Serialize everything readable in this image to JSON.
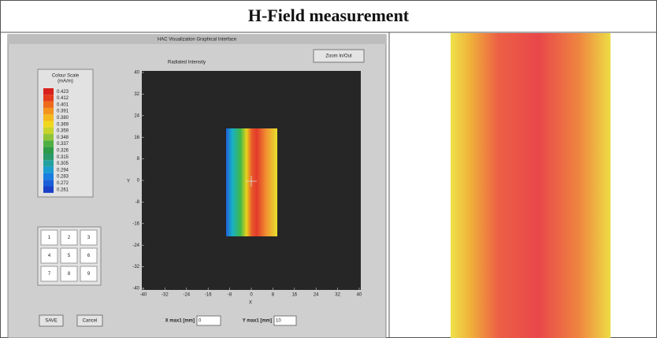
{
  "header": {
    "title": "H-Field measurement"
  },
  "window": {
    "title": "HAC Visualization Graphical Interface",
    "zoom_button": "Zoom In/Out",
    "plot": {
      "title": "Radiated Intensity",
      "x_label": "X",
      "y_label": "Y",
      "yticks": [
        "40",
        "32",
        "24",
        "16",
        "8",
        "0",
        "-8",
        "-16",
        "-24",
        "-32",
        "-40"
      ],
      "xticks": [
        "-40",
        "-32",
        "-24",
        "-16",
        "-8",
        "0",
        "8",
        "16",
        "24",
        "32",
        "40"
      ]
    },
    "color_scale": {
      "title": "Colour Scale",
      "unit": "(mA/m)",
      "labels": [
        "0.423",
        "0.412",
        "0.401",
        "0.391",
        "0.380",
        "0.369",
        "0.359",
        "0.348",
        "0.337",
        "0.326",
        "0.315",
        "0.305",
        "0.294",
        "0.283",
        "0.272",
        "0.261"
      ]
    },
    "keypad": [
      "1",
      "2",
      "3",
      "4",
      "5",
      "6",
      "7",
      "8",
      "9"
    ],
    "buttons": [
      "SAVE",
      "Cancel"
    ],
    "fields": [
      {
        "label": "X max1 [mm]",
        "value": "0"
      },
      {
        "label": "Y max1 [mm]",
        "value": "10"
      }
    ]
  }
}
